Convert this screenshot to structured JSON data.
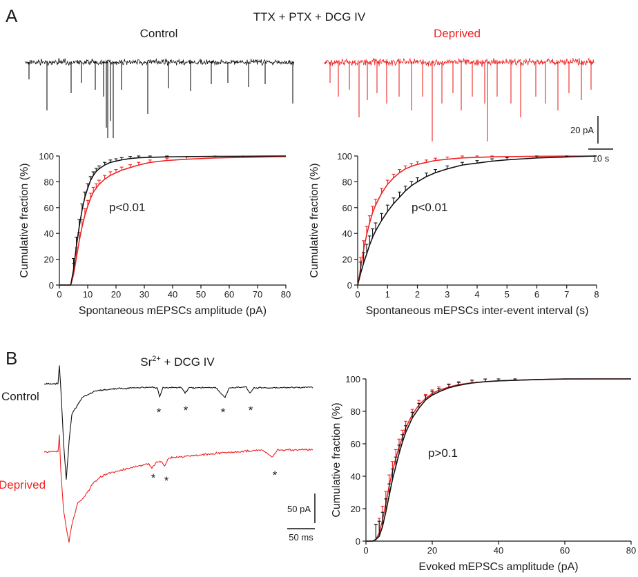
{
  "panel_a": {
    "letter": "A",
    "condition": "TTX + PTX + DCG IV",
    "control_label": "Control",
    "deprived_label": "Deprived",
    "scale_current": "20 pA",
    "scale_time": "10 s"
  },
  "panel_b": {
    "letter": "B",
    "condition_prefix": "Sr",
    "condition_sup": "2+",
    "condition_suffix": " + DCG IV",
    "control_label": "Control",
    "deprived_label": "Deprived",
    "scale_current": "50 pA",
    "scale_time": "50 ms",
    "event_marker": "*"
  },
  "colors": {
    "control": "#111111",
    "deprived": "#ee2222"
  },
  "chart_data": [
    {
      "type": "line",
      "xlabel": "Spontaneous mEPSCs amplitude (pA)",
      "ylabel": "Cumulative fraction (%)",
      "xlim": [
        0,
        80
      ],
      "ylim": [
        0,
        100
      ],
      "xticks": [
        0,
        10,
        20,
        30,
        40,
        50,
        60,
        70,
        80
      ],
      "yticks": [
        0,
        20,
        40,
        60,
        80,
        100
      ],
      "annotation": "p<0.01",
      "series": [
        {
          "name": "Control",
          "color": "#111111",
          "x": [
            0,
            4,
            5,
            6,
            7,
            8,
            9,
            10,
            11,
            12,
            13,
            14,
            16,
            18,
            20,
            22,
            25,
            28,
            32,
            38,
            45,
            55,
            65,
            80
          ],
          "y": [
            0,
            0,
            12,
            30,
            45,
            58,
            68,
            75,
            81,
            85,
            88,
            90,
            93,
            95,
            96,
            97,
            98,
            98.6,
            99,
            99.3,
            99.5,
            99.7,
            99.8,
            100
          ]
        },
        {
          "name": "Deprived",
          "color": "#ee2222",
          "x": [
            0,
            4,
            5,
            6,
            7,
            8,
            9,
            10,
            11,
            12,
            13,
            14,
            16,
            18,
            20,
            22,
            25,
            28,
            32,
            38,
            45,
            55,
            65,
            80
          ],
          "y": [
            0,
            0,
            8,
            21,
            34,
            45,
            54,
            61,
            67,
            72,
            75,
            78,
            82,
            85,
            87,
            89,
            91,
            93,
            95,
            96.5,
            97.5,
            98.5,
            99,
            99.5
          ]
        }
      ]
    },
    {
      "type": "line",
      "xlabel": "Spontaneous mEPSCs inter-event interval (s)",
      "ylabel": "Cumulative fraction (%)",
      "xlim": [
        0,
        8
      ],
      "ylim": [
        0,
        100
      ],
      "xticks": [
        0,
        1,
        2,
        3,
        4,
        5,
        6,
        7,
        8
      ],
      "yticks": [
        0,
        20,
        40,
        60,
        80,
        100
      ],
      "annotation": "p<0.01",
      "series": [
        {
          "name": "Control",
          "color": "#111111",
          "x": [
            0,
            0.1,
            0.2,
            0.3,
            0.4,
            0.5,
            0.6,
            0.8,
            1.0,
            1.2,
            1.4,
            1.6,
            1.8,
            2.0,
            2.3,
            2.6,
            3.0,
            3.5,
            4.0,
            4.5,
            5.0,
            6.0,
            7.0,
            8.0
          ],
          "y": [
            0,
            9,
            17,
            24,
            31,
            37,
            42,
            50,
            57,
            63,
            68,
            73,
            77,
            80,
            84,
            87,
            90,
            93,
            94.5,
            96,
            97,
            98.5,
            99.2,
            100
          ]
        },
        {
          "name": "Deprived",
          "color": "#ee2222",
          "x": [
            0,
            0.1,
            0.2,
            0.3,
            0.4,
            0.5,
            0.6,
            0.8,
            1.0,
            1.2,
            1.4,
            1.6,
            1.8,
            2.0,
            2.3,
            2.6,
            3.0,
            3.5,
            4.0,
            4.5,
            5.0,
            6.0,
            7.0,
            8.0
          ],
          "y": [
            0,
            13,
            27,
            39,
            48,
            56,
            62,
            71,
            78,
            83,
            87,
            90,
            92,
            93.5,
            95,
            96.5,
            97.5,
            98.5,
            99,
            99.3,
            99.5,
            99.8,
            99.9,
            100
          ]
        }
      ]
    },
    {
      "type": "line",
      "xlabel": "Evoked mEPSCs amplitude (pA)",
      "ylabel": "Cumulative fraction (%)",
      "xlim": [
        0,
        80
      ],
      "ylim": [
        0,
        100
      ],
      "xticks": [
        0,
        20,
        40,
        60,
        80
      ],
      "yticks": [
        0,
        20,
        40,
        60,
        80,
        100
      ],
      "annotation": "p>0.1",
      "series": [
        {
          "name": "Control",
          "color": "#111111",
          "x": [
            0,
            2,
            3,
            4,
            5,
            6,
            7,
            8,
            9,
            10,
            11,
            12,
            14,
            16,
            18,
            20,
            22,
            25,
            28,
            32,
            36,
            40,
            45,
            50,
            55,
            60,
            70,
            80
          ],
          "y": [
            0,
            0,
            1,
            3,
            9,
            18,
            28,
            38,
            46,
            54,
            61,
            67,
            76,
            82,
            87,
            90,
            92,
            94.5,
            96,
            97.5,
            98.3,
            98.8,
            99.2,
            99.5,
            99.8,
            100,
            100,
            100
          ]
        },
        {
          "name": "Deprived",
          "color": "#ee2222",
          "x": [
            0,
            2,
            3,
            4,
            5,
            6,
            7,
            8,
            9,
            10,
            11,
            12,
            14,
            16,
            18,
            20,
            22,
            25,
            28,
            32,
            36,
            40,
            45,
            50,
            55,
            60,
            70,
            80
          ],
          "y": [
            0,
            0,
            1,
            5,
            13,
            23,
            34,
            43,
            51,
            58,
            64,
            70,
            78,
            84,
            88,
            91,
            93,
            95,
            96.5,
            97.6,
            98.3,
            98.8,
            99.2,
            99.5,
            99.7,
            99.9,
            100,
            100
          ]
        }
      ]
    }
  ]
}
